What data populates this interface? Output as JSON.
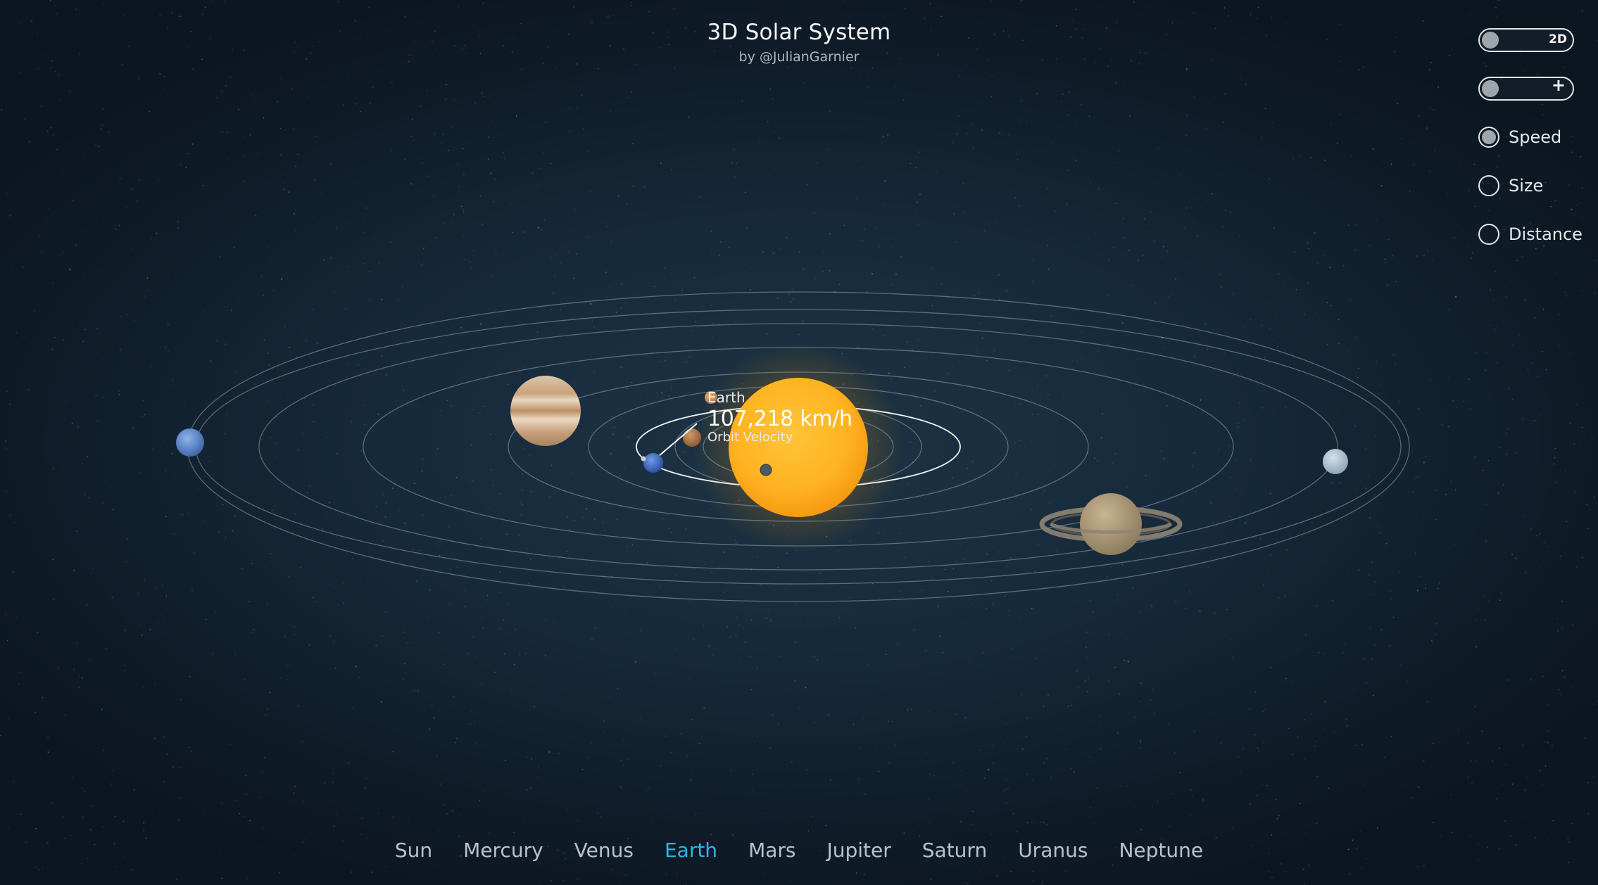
{
  "header": {
    "title": "3D Solar System",
    "subtitle": "by @JulianGarnier"
  },
  "controls": {
    "view_toggle_label": "2D",
    "zoom_toggle_label": "+",
    "scale_options": [
      {
        "label": "Speed",
        "checked": true
      },
      {
        "label": "Size",
        "checked": false
      },
      {
        "label": "Distance",
        "checked": false
      }
    ]
  },
  "info": {
    "planet": "Earth",
    "value": "107,218 km/h",
    "caption": "Orbit Velocity"
  },
  "nav": {
    "items": [
      "Sun",
      "Mercury",
      "Venus",
      "Earth",
      "Mars",
      "Jupiter",
      "Saturn",
      "Uranus",
      "Neptune"
    ],
    "active": "Earth"
  },
  "colors": {
    "accent": "#2ab8e8",
    "sun": "#ffb21f",
    "background": "#16293a"
  },
  "icons": [
    "sun-icon",
    "mercury-icon",
    "venus-icon",
    "earth-icon",
    "mars-icon",
    "jupiter-icon",
    "saturn-icon",
    "uranus-icon",
    "neptune-icon"
  ]
}
